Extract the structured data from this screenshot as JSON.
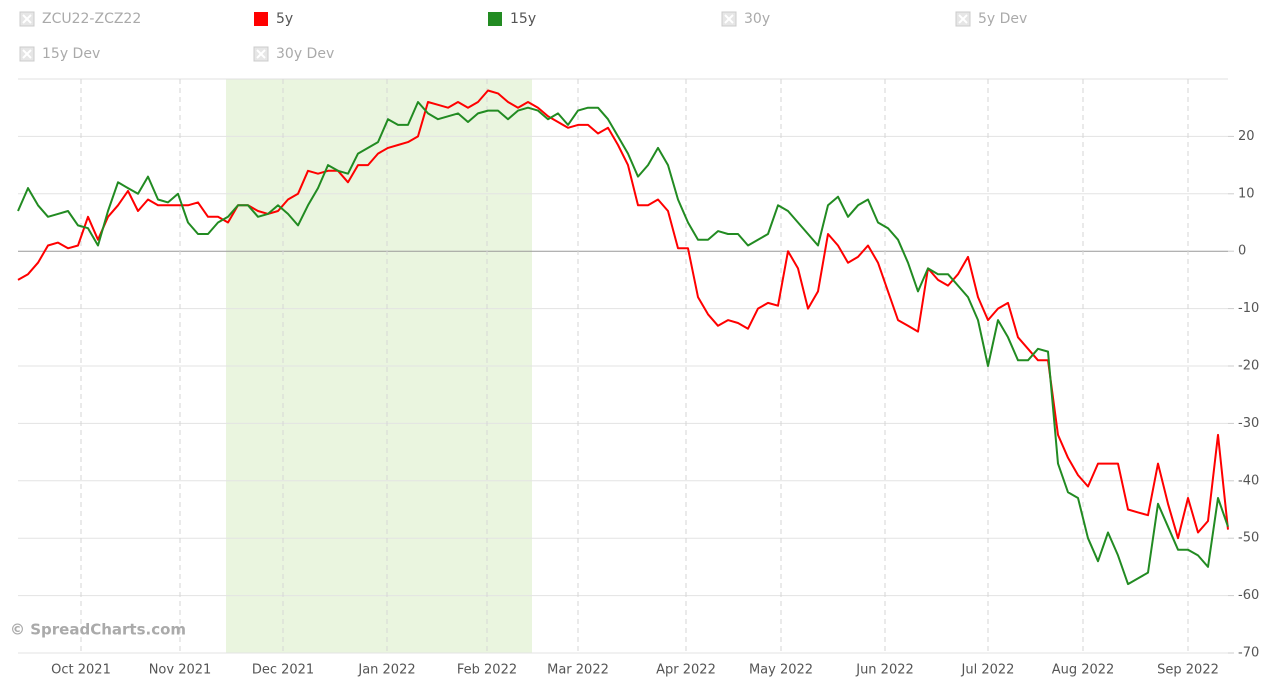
{
  "chart_data": {
    "type": "line",
    "credit": "© SpreadCharts.com",
    "series": [
      {
        "name": "ZCU22-ZCZ22",
        "hidden": true
      },
      {
        "name": "5y",
        "color": "#ff0000",
        "values": [
          -5,
          -4,
          -2,
          1,
          1.5,
          0.5,
          1,
          6,
          2,
          6,
          8,
          10.5,
          7,
          9,
          8,
          8,
          8,
          8,
          8.5,
          6,
          6,
          5,
          8,
          8,
          7,
          6.5,
          7,
          9,
          10,
          14,
          13.5,
          14,
          14,
          12,
          15,
          15,
          17,
          18,
          18.5,
          19,
          20,
          26,
          25.5,
          25,
          26,
          25,
          26,
          28,
          27.5,
          26,
          25,
          26,
          25,
          23.5,
          22.5,
          21.5,
          22,
          22,
          20.5,
          21.5,
          18.5,
          15,
          8,
          8,
          9,
          7,
          0.5,
          0.5,
          -8,
          -11,
          -13,
          -12,
          -12.5,
          -13.5,
          -10,
          -9,
          -9.5,
          0,
          -3,
          -10,
          -7,
          3,
          1,
          -2,
          -1,
          1,
          -2,
          -7,
          -12,
          -13,
          -14,
          -3,
          -5,
          -6,
          -4,
          -1,
          -8,
          -12,
          -10,
          -9,
          -15,
          -17,
          -19,
          -19,
          -32,
          -36,
          -39,
          -41,
          -37,
          -37,
          -37,
          -45,
          -45.5,
          -46,
          -37,
          -44,
          -50,
          -43,
          -49,
          -47,
          -32,
          -48.5
        ]
      },
      {
        "name": "15y",
        "color": "#228b22",
        "values": [
          7,
          11,
          8,
          6,
          6.5,
          7,
          4.5,
          4,
          1,
          7,
          12,
          11,
          10,
          13,
          9,
          8.5,
          10,
          5,
          3,
          3,
          5,
          6,
          8,
          8,
          6,
          6.5,
          8,
          6.5,
          4.5,
          8,
          11,
          15,
          14,
          13.5,
          17,
          18,
          19,
          23,
          22,
          22,
          26,
          24,
          23,
          23.5,
          24,
          22.5,
          24,
          24.5,
          24.5,
          23,
          24.5,
          25,
          24.5,
          23,
          24,
          22,
          24.5,
          25,
          25,
          23,
          20,
          17,
          13,
          15,
          18,
          15,
          9,
          5,
          2,
          2,
          3.5,
          3,
          3,
          1,
          2,
          3,
          8,
          7,
          5,
          3,
          1,
          8,
          9.5,
          6,
          8,
          9,
          5,
          4,
          2,
          -2,
          -7,
          -3,
          -4,
          -4,
          -6,
          -8,
          -12,
          -20,
          -12,
          -15,
          -19,
          -19,
          -17,
          -17.5,
          -37,
          -42,
          -43,
          -50,
          -54,
          -49,
          -53,
          -58,
          -57,
          -56,
          -44,
          -48,
          -52,
          -52,
          -53,
          -55,
          -43,
          -48
        ]
      },
      {
        "name": "30y",
        "hidden": true
      },
      {
        "name": "5y Dev",
        "hidden": true
      },
      {
        "name": "15y Dev",
        "hidden": true
      },
      {
        "name": "30y Dev",
        "hidden": true
      }
    ],
    "xlim": [
      0,
      121
    ],
    "xticks": [
      {
        "value": 6.3,
        "label": "Oct 2021"
      },
      {
        "value": 16.2,
        "label": "Nov 2021"
      },
      {
        "value": 26.5,
        "label": "Dec 2021"
      },
      {
        "value": 36.9,
        "label": "Jan 2022"
      },
      {
        "value": 46.9,
        "label": "Feb 2022"
      },
      {
        "value": 56,
        "label": "Mar 2022"
      },
      {
        "value": 66.8,
        "label": "Apr 2022"
      },
      {
        "value": 76.3,
        "label": "May 2022"
      },
      {
        "value": 86.7,
        "label": "Jun 2022"
      },
      {
        "value": 97,
        "label": "Jul 2022"
      },
      {
        "value": 106.5,
        "label": "Aug 2022"
      },
      {
        "value": 117,
        "label": "Sep 2022"
      }
    ],
    "ylim": [
      -70,
      30
    ],
    "yticks": [
      -70,
      -60,
      -50,
      -40,
      -30,
      -20,
      -10,
      0,
      10,
      20
    ],
    "highlight": {
      "xrange": [
        20.8,
        51.4
      ],
      "color": "#eaf5df"
    },
    "grid": true
  }
}
